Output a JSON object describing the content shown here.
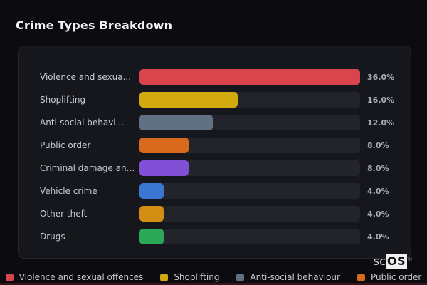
{
  "page": {
    "title": "Crime Types Breakdown"
  },
  "chart_data": {
    "type": "bar",
    "orientation": "horizontal",
    "title": "Crime Types Breakdown",
    "categories": [
      "Violence and sexua...",
      "Shoplifting",
      "Anti-social behavi...",
      "Public order",
      "Criminal damage an...",
      "Vehicle crime",
      "Other theft",
      "Drugs"
    ],
    "values": [
      36.0,
      16.0,
      12.0,
      8.0,
      8.0,
      4.0,
      4.0,
      4.0
    ],
    "value_labels": [
      "36.0%",
      "16.0%",
      "12.0%",
      "8.0%",
      "8.0%",
      "4.0%",
      "4.0%",
      "4.0%"
    ],
    "colors": [
      "#d8454d",
      "#d2a90f",
      "#617083",
      "#d96a1d",
      "#8150d6",
      "#3a76d2",
      "#d18e12",
      "#2aa757"
    ],
    "bar_scale_max": 36.0,
    "grid": false,
    "legend": {
      "position": "bottom",
      "entries": [
        {
          "label": "Violence and sexual offences",
          "color": "#d8454d"
        },
        {
          "label": "Shoplifting",
          "color": "#d2a90f"
        },
        {
          "label": "Anti-social behaviour",
          "color": "#617083"
        },
        {
          "label": "Public order",
          "color": "#d96a1d"
        }
      ]
    }
  },
  "branding": {
    "prefix": "sc",
    "name": "OS",
    "registered": "®"
  }
}
